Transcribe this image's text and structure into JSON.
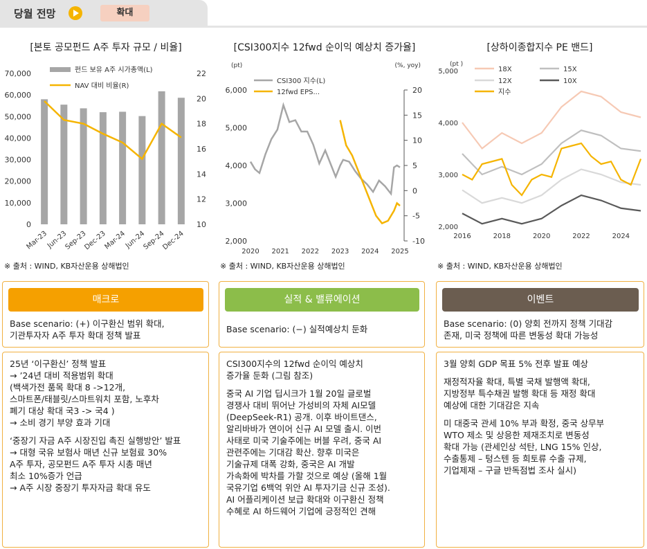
{
  "header": {
    "title": "당월 전망",
    "badge": "확대"
  },
  "charts": {
    "left_title": "[본토 공모펀드 A주 투자 규모 / 비율]",
    "mid_title": "[CSI300지수 12fwd 순이익 예상치 증가율]",
    "right_title": "[상하이종합지수 PE 밴드]",
    "source": "※ 출처 : WIND, KB자산운용 상해법인"
  },
  "chart_data": [
    {
      "type": "bar",
      "categories": [
        "Mar-23",
        "Jun-23",
        "Sep-23",
        "Dec-23",
        "Mar-24",
        "Jun-24",
        "Sep-24",
        "Dec-24"
      ],
      "series": [
        {
          "name": "펀드 보유 A주 시가총액(L)",
          "values": [
            58000,
            55500,
            53800,
            52000,
            52200,
            50200,
            61700,
            58700
          ],
          "axis": "left",
          "color": "#a6a6a6"
        },
        {
          "name": "NAV 대비 비율(R)",
          "values": [
            19.8,
            18.3,
            18.0,
            17.2,
            16.5,
            15.2,
            18.0,
            16.9
          ],
          "axis": "right",
          "color": "#f5b400"
        }
      ],
      "ylim": [
        0,
        70000
      ],
      "yticks": [
        "70,000",
        "60,000",
        "50,000",
        "40,000",
        "30,000",
        "20,000",
        "10,000",
        "0"
      ],
      "y2lim": [
        10,
        22
      ],
      "y2ticks": [
        "22",
        "20",
        "18",
        "16",
        "14",
        "12",
        "10"
      ]
    },
    {
      "type": "line",
      "unit_left": "(pt)",
      "unit_right": "(%, yoy)",
      "xticks": [
        "2020",
        "2021",
        "2022",
        "2023",
        "2024",
        "2025"
      ],
      "ylim": [
        2000,
        6000
      ],
      "yticks": [
        "6,000",
        "5,000",
        "4,000",
        "3,000",
        "2,000"
      ],
      "y2lim": [
        -10,
        20
      ],
      "y2ticks": [
        "20",
        "15",
        "10",
        "5",
        "0",
        "-5",
        "-10"
      ],
      "series": [
        {
          "name": "CSI300 지수(L)",
          "axis": "left",
          "color": "#a6a6a6",
          "x": [
            2020.0,
            2020.15,
            2020.3,
            2020.5,
            2020.7,
            2020.9,
            2021.1,
            2021.3,
            2021.5,
            2021.7,
            2021.9,
            2022.1,
            2022.3,
            2022.5,
            2022.7,
            2022.85,
            2023.0,
            2023.1,
            2023.3,
            2023.5,
            2023.7,
            2023.9,
            2024.1,
            2024.3,
            2024.5,
            2024.7,
            2024.8,
            2024.9,
            2025.0
          ],
          "values": [
            4100,
            3900,
            3800,
            4300,
            4700,
            4950,
            5600,
            5150,
            5200,
            4900,
            4900,
            4550,
            4050,
            4400,
            4000,
            3700,
            4000,
            4150,
            4100,
            3850,
            3650,
            3500,
            3300,
            3600,
            3450,
            3250,
            3950,
            4000,
            3950
          ]
        },
        {
          "name": "12fwd EPS...",
          "axis": "right",
          "color": "#f5b400",
          "x": [
            2023.0,
            2023.2,
            2023.4,
            2023.6,
            2023.8,
            2024.0,
            2024.2,
            2024.4,
            2024.6,
            2024.8,
            2024.9,
            2025.0
          ],
          "values": [
            14,
            9,
            7,
            4,
            1,
            -2,
            -5,
            -6.5,
            -6,
            -4,
            -2.5,
            -3
          ]
        }
      ]
    },
    {
      "type": "line",
      "unit_left": "(pt )",
      "xticks": [
        "2016",
        "2018",
        "2020",
        "2022",
        "2024"
      ],
      "ylim": [
        2000,
        5000
      ],
      "yticks": [
        "5,000",
        "4,000",
        "3,000",
        "2,000"
      ],
      "series": [
        {
          "name": "18X",
          "color": "#f6c9b4",
          "x": [
            2016,
            2017,
            2018,
            2019,
            2020,
            2021,
            2022,
            2023,
            2024,
            2025
          ],
          "values": [
            4000,
            3500,
            3800,
            3600,
            3800,
            4300,
            4600,
            4500,
            4200,
            4100
          ]
        },
        {
          "name": "15X",
          "color": "#bfbfbf",
          "x": [
            2016,
            2017,
            2018,
            2019,
            2020,
            2021,
            2022,
            2023,
            2024,
            2025
          ],
          "values": [
            3400,
            3000,
            3150,
            3000,
            3200,
            3600,
            3850,
            3750,
            3500,
            3450
          ]
        },
        {
          "name": "12X",
          "color": "#d9d9d9",
          "x": [
            2016,
            2017,
            2018,
            2019,
            2020,
            2021,
            2022,
            2023,
            2024,
            2025
          ],
          "values": [
            2700,
            2450,
            2550,
            2450,
            2600,
            2900,
            3100,
            3000,
            2850,
            2800
          ]
        },
        {
          "name": "10X",
          "color": "#595959",
          "x": [
            2016,
            2017,
            2018,
            2019,
            2020,
            2021,
            2022,
            2023,
            2024,
            2025
          ],
          "values": [
            2250,
            2050,
            2150,
            2050,
            2150,
            2400,
            2600,
            2500,
            2350,
            2300
          ]
        },
        {
          "name": "지수",
          "color": "#f5b400",
          "x": [
            2016,
            2016.5,
            2017,
            2017.5,
            2018,
            2018.5,
            2019,
            2019.5,
            2020,
            2020.5,
            2021,
            2021.5,
            2022,
            2022.5,
            2023,
            2023.5,
            2024,
            2024.5,
            2025
          ],
          "values": [
            3000,
            2900,
            3200,
            3250,
            3300,
            2800,
            2600,
            2900,
            3000,
            2950,
            3500,
            3550,
            3600,
            3350,
            3200,
            3250,
            2900,
            2800,
            3300
          ]
        }
      ]
    }
  ],
  "cards": [
    {
      "pill": "매크로",
      "pill_color": "#f5a000",
      "scenario": [
        "Base scenario: (+) 이구환신 범위 확대,",
        "기관투자자 A주 투자 확대 정책 발표"
      ],
      "paras": [
        [
          "25년 ‘이구환신’ 정책 발표",
          "→ ’24년 대비 적용범위 확대",
          "(백색가전 품목 확대 8 ->12개,",
          "스마트폰/태블릿/스마트워치 포함, 노후차",
          "폐기 대상 확대 국3 -> 국4 )",
          "→ 소비 경기 부양 효과 기대"
        ],
        [
          "‘중장기 자금 A주 시장진입 촉진 실행방안’ 발표",
          "→ 대형 국유 보험사 매년 신규 보험료 30%",
          "A주 투자, 공모펀드 A주 투자 시총 매년",
          "최소 10%증가 언급",
          "→ A주 시장 중장기 투자자금 확대 유도"
        ]
      ]
    },
    {
      "pill": "실적 & 밸류에이션",
      "pill_color": "#8cbd4a",
      "scenario": [
        "Base scenario: (−) 실적예상치 둔화"
      ],
      "paras": [
        [
          "CSI300지수의 12fwd 순이익 예상치",
          "증가율 둔화 (그림 참조)"
        ],
        [
          "중국 AI 기업 딥시크가 1월 20일 글로벌",
          "경쟁사 대비 뛰어난 가성비의 자체 AI모델",
          "(DeepSeek-R1) 공개. 이후 바이트댄스,",
          "알리바바가 연이어 신규 AI 모델 출시. 이번",
          "사태로 미국 기술주에는 버블 우려, 중국 AI",
          "관련주에는 기대감 확산. 향후 미국은",
          "기술규제 대폭 강화, 중국은 AI 개발",
          "가속화에 박차를 가할 것으로 예상 (올해 1월",
          "국유기업 6백억 위안 AI 투자기금 신규 조성).",
          "AI 어플리케이션 보급 확대와 이구환신 정책",
          "수혜로 AI 하드웨어 기업에 긍정적인 견해"
        ]
      ]
    },
    {
      "pill": "이벤트",
      "pill_color": "#6b5d50",
      "scenario": [
        "Base scenario: (0) 양회 전까지 정책 기대감",
        "존재, 미국 정책에 따른 변동성 확대 가능성"
      ],
      "paras": [
        [
          "3월 양회 GDP 목표 5% 전후 발표 예상"
        ],
        [
          "재정적자율 확대, 특별 국채 발행액 확대,",
          "지방정부 특수채권 발행 확대 등 재정 확대",
          "예상에 대한 기대감은 지속"
        ],
        [
          "미 대중국 관세 10% 부과 확정, 중국 상무부",
          "WTO 제소 및 상응한 제재조치로 변동성",
          "확대 가능 (관세인상 석탄, LNG 15% 인상,",
          "수출통제 – 텅스텐 등 희토류 수출 규제,",
          "기업제재 – 구글 반독점법 조사 실시)"
        ]
      ]
    }
  ]
}
